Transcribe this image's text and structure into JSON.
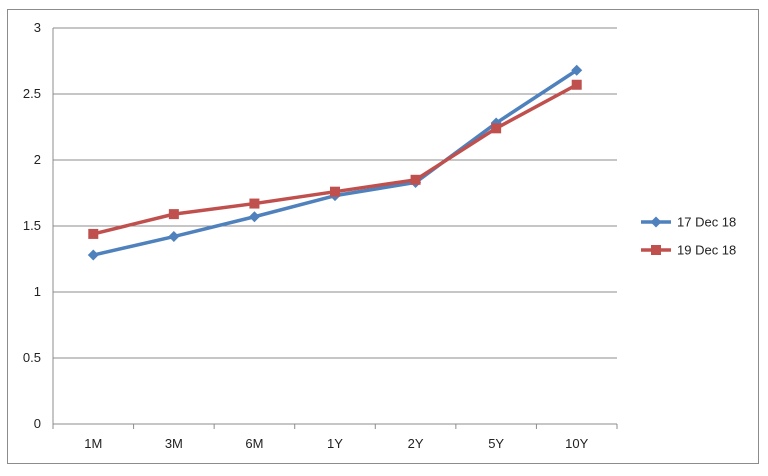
{
  "chart_data": {
    "type": "line",
    "title": "",
    "xlabel": "",
    "ylabel": "",
    "categories": [
      "1M",
      "3M",
      "6M",
      "1Y",
      "2Y",
      "5Y",
      "10Y"
    ],
    "ylim": [
      0,
      3
    ],
    "yticks": [
      "0",
      "0.5",
      "1",
      "1.5",
      "2",
      "2.5",
      "3"
    ],
    "grid": "horizontal",
    "legend_position": "right",
    "series": [
      {
        "name": "17 Dec 18",
        "color": "#4f81bd",
        "marker": "diamond",
        "values": [
          1.28,
          1.42,
          1.57,
          1.73,
          1.83,
          2.28,
          2.68
        ]
      },
      {
        "name": "19 Dec 18",
        "color": "#c0504d",
        "marker": "square",
        "values": [
          1.44,
          1.59,
          1.67,
          1.76,
          1.85,
          2.24,
          2.57
        ]
      }
    ]
  }
}
